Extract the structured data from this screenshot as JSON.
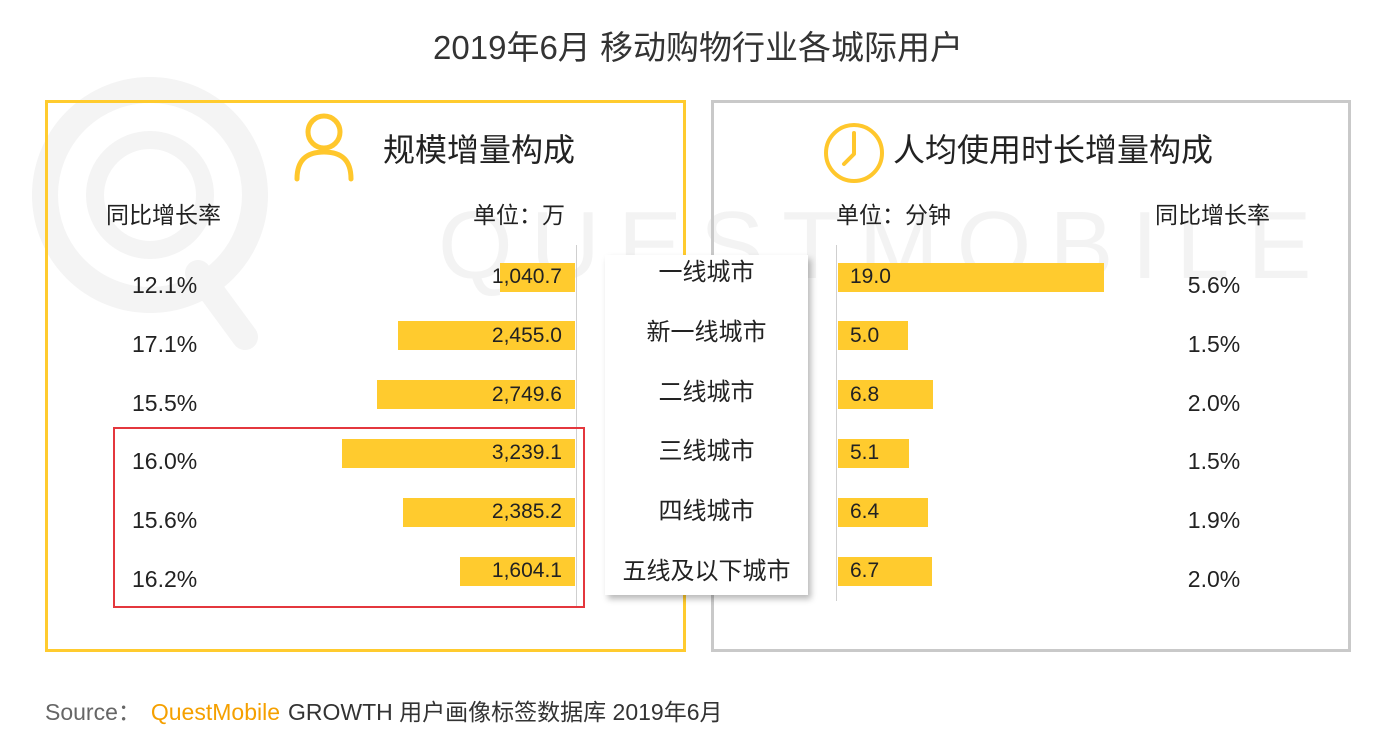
{
  "watermark": "QUESTMOBILE",
  "colors": {
    "bar": "#FFCB2E",
    "left_panel_border": "#FFCB2E",
    "right_panel_border": "#C9C9C9",
    "highlight_box": "#E4373D",
    "brand": "#F5A000",
    "icon": "#FFC72C"
  },
  "chart_data": {
    "type": "bar",
    "orientation": "horizontal",
    "title": "2019年6月 移动购物行业各城际用户",
    "categories": [
      "一线城市",
      "新一线城市",
      "二线城市",
      "三线城市",
      "四线城市",
      "五线及以下城市"
    ],
    "series": [
      {
        "name": "规模增量构成",
        "icon": "person-icon",
        "growth_header": "同比增长率",
        "unit_label": "单位：万",
        "values": [
          1040.7,
          2455.0,
          2749.6,
          3239.1,
          2385.2,
          1604.1
        ],
        "value_labels": [
          "1,040.7",
          "2,455.0",
          "2,749.6",
          "3,239.1",
          "2,385.2",
          "1,604.1"
        ],
        "growth_rates": [
          "12.1%",
          "17.1%",
          "15.5%",
          "16.0%",
          "15.6%",
          "16.2%"
        ]
      },
      {
        "name": "人均使用时长增量构成",
        "icon": "clock-icon",
        "growth_header": "同比增长率",
        "unit_label": "单位：分钟",
        "values": [
          19.0,
          5.0,
          6.8,
          5.1,
          6.4,
          6.7
        ],
        "value_labels": [
          "19.0",
          "5.0",
          "6.8",
          "5.1",
          "6.4",
          "6.7"
        ],
        "growth_rates": [
          "5.6%",
          "1.5%",
          "2.0%",
          "1.5%",
          "1.9%",
          "2.0%"
        ]
      }
    ],
    "highlighted_category_indices": [
      3,
      4,
      5
    ]
  },
  "source": {
    "label": "Source：",
    "brand": "QuestMobile",
    "text": "GROWTH 用户画像标签数据库 2019年6月"
  }
}
